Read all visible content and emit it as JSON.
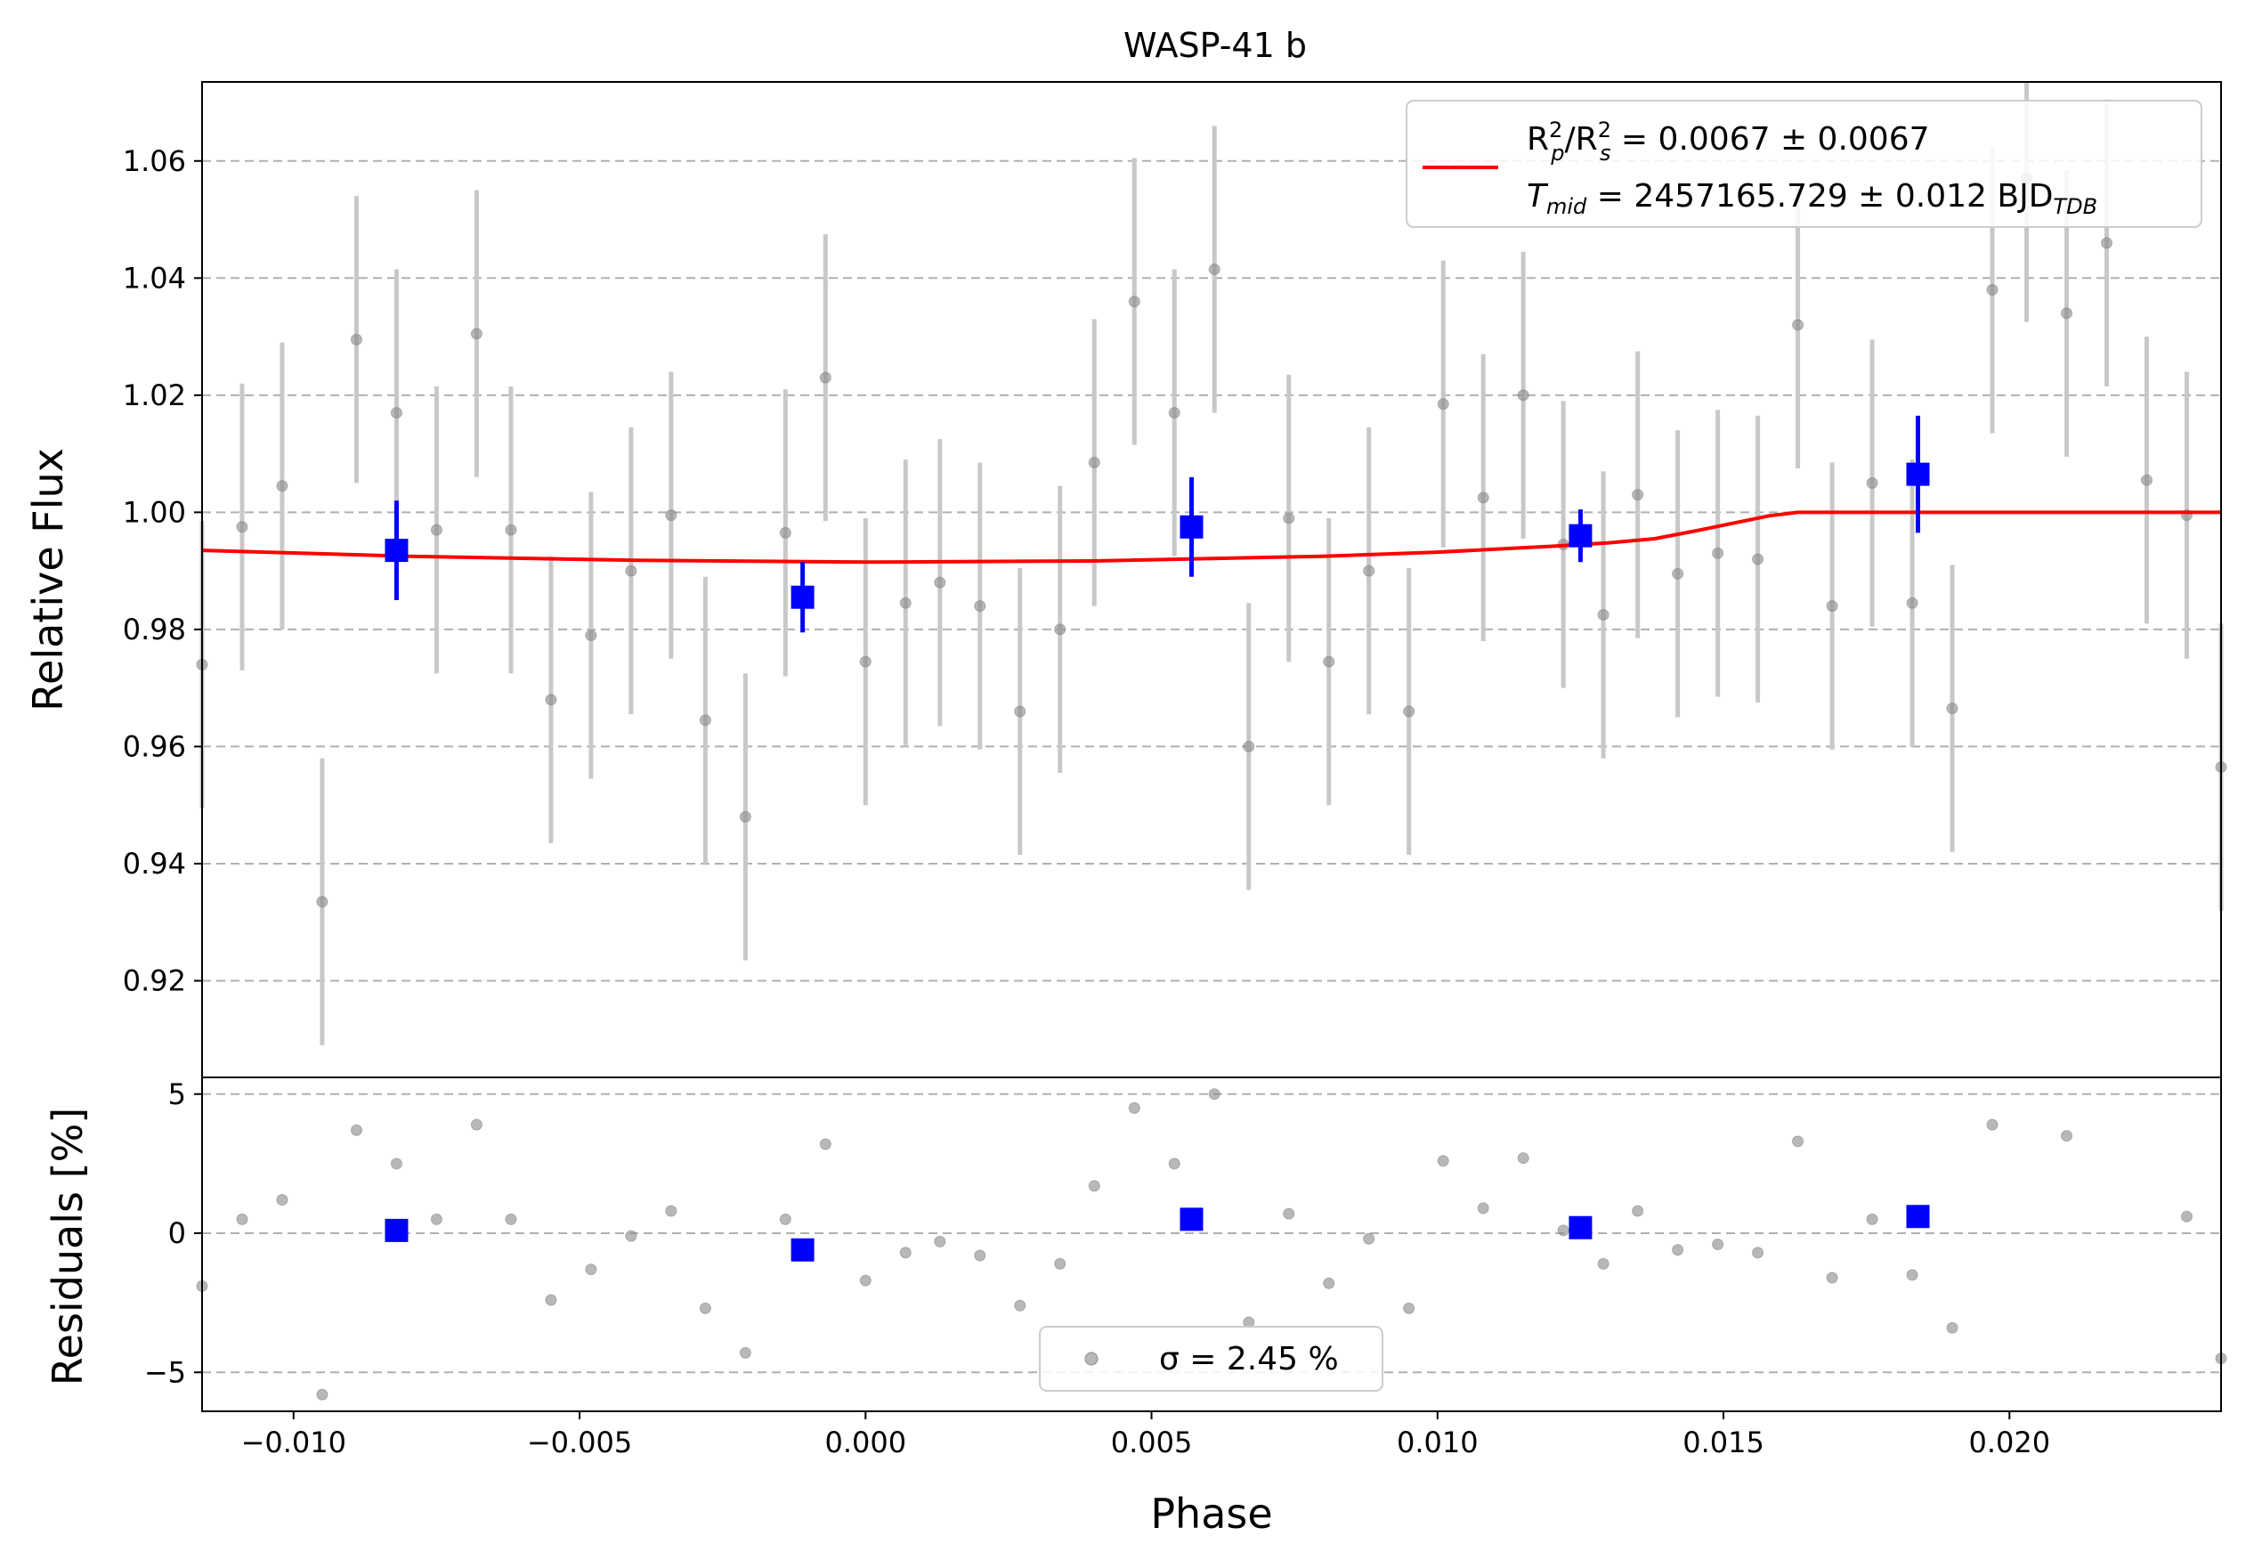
{
  "chart_data": [
    {
      "type": "scatter",
      "panel": "transit",
      "title": "WASP-41 b",
      "xlabel": "",
      "ylabel": "Relative Flux",
      "xlim": [
        -0.0116,
        0.0237
      ],
      "ylim": [
        0.9035,
        1.0735
      ],
      "yticks": [
        "0.92",
        "0.94",
        "0.96",
        "0.98",
        "1.00",
        "1.02",
        "1.04",
        "1.06"
      ],
      "grid": "horizontal dashed",
      "legend_position": "top-right",
      "legend": {
        "model_line_1": "R_p²/R_s² = 0.0067 ± 0.0067",
        "model_line_2": "T_mid = 2457165.729 ± 0.012 BJD_TDB"
      },
      "colors": {
        "data": "#888888",
        "errorbar": "#c8c8c8",
        "binned": "#0000ff",
        "model": "#ff0000"
      },
      "data": {
        "x": [
          -0.0116,
          -0.0109,
          -0.0102,
          -0.0095,
          -0.0089,
          -0.0082,
          -0.0075,
          -0.0068,
          -0.0062,
          -0.0055,
          -0.0048,
          -0.0041,
          -0.0034,
          -0.0028,
          -0.0021,
          -0.0014,
          -0.0007,
          0.0,
          0.0007,
          0.0013,
          0.002,
          0.0027,
          0.0034,
          0.004,
          0.0047,
          0.0054,
          0.0061,
          0.0067,
          0.0074,
          0.0081,
          0.0088,
          0.0095,
          0.0101,
          0.0108,
          0.0115,
          0.0122,
          0.0129,
          0.0135,
          0.0142,
          0.0149,
          0.0156,
          0.0163,
          0.0169,
          0.0176,
          0.0183,
          0.019,
          0.0197,
          0.0203,
          0.021,
          0.0217,
          0.0224,
          0.0231,
          0.0237
        ],
        "y": [
          0.974,
          0.9975,
          1.0045,
          0.9335,
          1.0295,
          1.017,
          0.997,
          1.0305,
          0.997,
          0.968,
          0.979,
          0.99,
          0.9995,
          0.9645,
          0.948,
          0.9965,
          1.023,
          0.9745,
          0.9845,
          0.988,
          0.984,
          0.966,
          0.98,
          1.0085,
          1.036,
          1.017,
          1.0415,
          0.96,
          0.999,
          0.9745,
          0.99,
          0.966,
          1.0185,
          1.0025,
          1.02,
          0.9945,
          0.9825,
          1.003,
          0.9895,
          0.993,
          0.992,
          1.032,
          0.984,
          1.005,
          0.9845,
          0.9665,
          1.038,
          1.057,
          1.034,
          1.046,
          1.0055,
          0.9995,
          0.9565
        ],
        "yerr": 0.0245
      },
      "binned": {
        "x": [
          -0.0082,
          -0.0011,
          0.0057,
          0.0125,
          0.0184
        ],
        "y": [
          0.9935,
          0.9855,
          0.9975,
          0.996,
          1.0065
        ],
        "yerr": [
          0.0085,
          0.006,
          0.0085,
          0.0045,
          0.01
        ]
      },
      "model": {
        "x": [
          -0.0116,
          -0.008,
          -0.004,
          0.0,
          0.004,
          0.008,
          0.01,
          0.012,
          0.013,
          0.0138,
          0.0145,
          0.0152,
          0.0158,
          0.0163,
          0.0165,
          0.02,
          0.0237
        ],
        "y": [
          0.9935,
          0.9925,
          0.9918,
          0.9915,
          0.9917,
          0.9925,
          0.9932,
          0.9942,
          0.9948,
          0.9955,
          0.9968,
          0.9982,
          0.9994,
          1.0,
          1.0,
          1.0,
          1.0
        ]
      }
    },
    {
      "type": "scatter",
      "panel": "residuals",
      "xlabel": "Phase",
      "ylabel": "Residuals [%]",
      "xlim": [
        -0.0116,
        0.0237
      ],
      "ylim": [
        -6.4,
        5.6
      ],
      "xticks": [
        "−0.010",
        "−0.005",
        "0.000",
        "0.005",
        "0.010",
        "0.015",
        "0.020"
      ],
      "yticks": [
        "−5",
        "0",
        "5"
      ],
      "grid": "horizontal dashed",
      "legend_position": "bottom-center",
      "legend": {
        "sigma_text": "σ = 2.45 %"
      },
      "data": {
        "x": [
          -0.0116,
          -0.0109,
          -0.0102,
          -0.0095,
          -0.0089,
          -0.0082,
          -0.0075,
          -0.0068,
          -0.0062,
          -0.0055,
          -0.0048,
          -0.0041,
          -0.0034,
          -0.0028,
          -0.0021,
          -0.0014,
          -0.0007,
          0.0,
          0.0007,
          0.0013,
          0.002,
          0.0027,
          0.0034,
          0.004,
          0.0047,
          0.0054,
          0.0061,
          0.0067,
          0.0074,
          0.0081,
          0.0088,
          0.0095,
          0.0101,
          0.0108,
          0.0115,
          0.0122,
          0.0129,
          0.0135,
          0.0142,
          0.0149,
          0.0156,
          0.0163,
          0.0169,
          0.0176,
          0.0183,
          0.019,
          0.0197,
          0.021,
          0.0231,
          0.0237
        ],
        "y": [
          -1.9,
          0.5,
          1.2,
          -5.8,
          3.7,
          2.5,
          0.5,
          3.9,
          0.5,
          -2.4,
          -1.3,
          -0.1,
          0.8,
          -2.7,
          -4.3,
          0.5,
          3.2,
          -1.7,
          -0.7,
          -0.3,
          -0.8,
          -2.6,
          -1.1,
          1.7,
          4.5,
          2.5,
          5.0,
          -3.2,
          0.7,
          -1.8,
          -0.2,
          -2.7,
          2.6,
          0.9,
          2.7,
          0.1,
          -1.1,
          0.8,
          -0.6,
          -0.4,
          -0.7,
          3.3,
          -1.6,
          0.5,
          -1.5,
          -3.4,
          3.9,
          3.5,
          0.6,
          -4.5
        ]
      },
      "binned": {
        "x": [
          -0.0082,
          -0.0011,
          0.0057,
          0.0125,
          0.0184
        ],
        "y": [
          0.1,
          -0.6,
          0.5,
          0.2,
          0.6
        ]
      }
    }
  ]
}
